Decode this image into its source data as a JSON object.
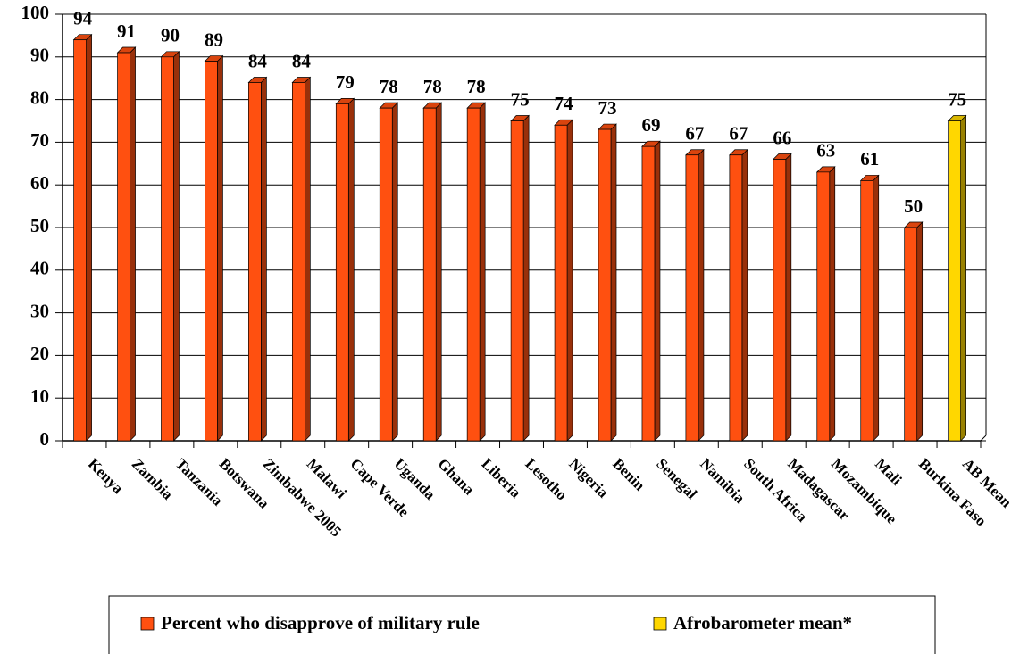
{
  "chart_data": {
    "type": "bar",
    "categories": [
      "Kenya",
      "Zambia",
      "Tanzania",
      "Botswana",
      "Zimbabwe 2005",
      "Malawi",
      "Cape Verde",
      "Uganda",
      "Ghana",
      "Liberia",
      "Lesotho",
      "Nigeria",
      "Benin",
      "Senegal",
      "Namibia",
      "South Africa",
      "Madagascar",
      "Mozambique",
      "Mali",
      "Burkina Faso",
      "AB Mean"
    ],
    "series": [
      {
        "name": "Percent who disapprove of military rule",
        "color": "#ff5010",
        "values": [
          94,
          91,
          90,
          89,
          84,
          84,
          79,
          78,
          78,
          78,
          75,
          74,
          73,
          69,
          67,
          67,
          66,
          63,
          61,
          50,
          null
        ]
      },
      {
        "name": "Afrobarometer mean*",
        "color": "#ffd700",
        "values": [
          null,
          null,
          null,
          null,
          null,
          null,
          null,
          null,
          null,
          null,
          null,
          null,
          null,
          null,
          null,
          null,
          null,
          null,
          null,
          null,
          75
        ]
      }
    ],
    "ylim": [
      0,
      100
    ],
    "yticks": [
      0,
      10,
      20,
      30,
      40,
      50,
      60,
      70,
      80,
      90,
      100
    ],
    "grid": true,
    "legend": "bottom"
  }
}
